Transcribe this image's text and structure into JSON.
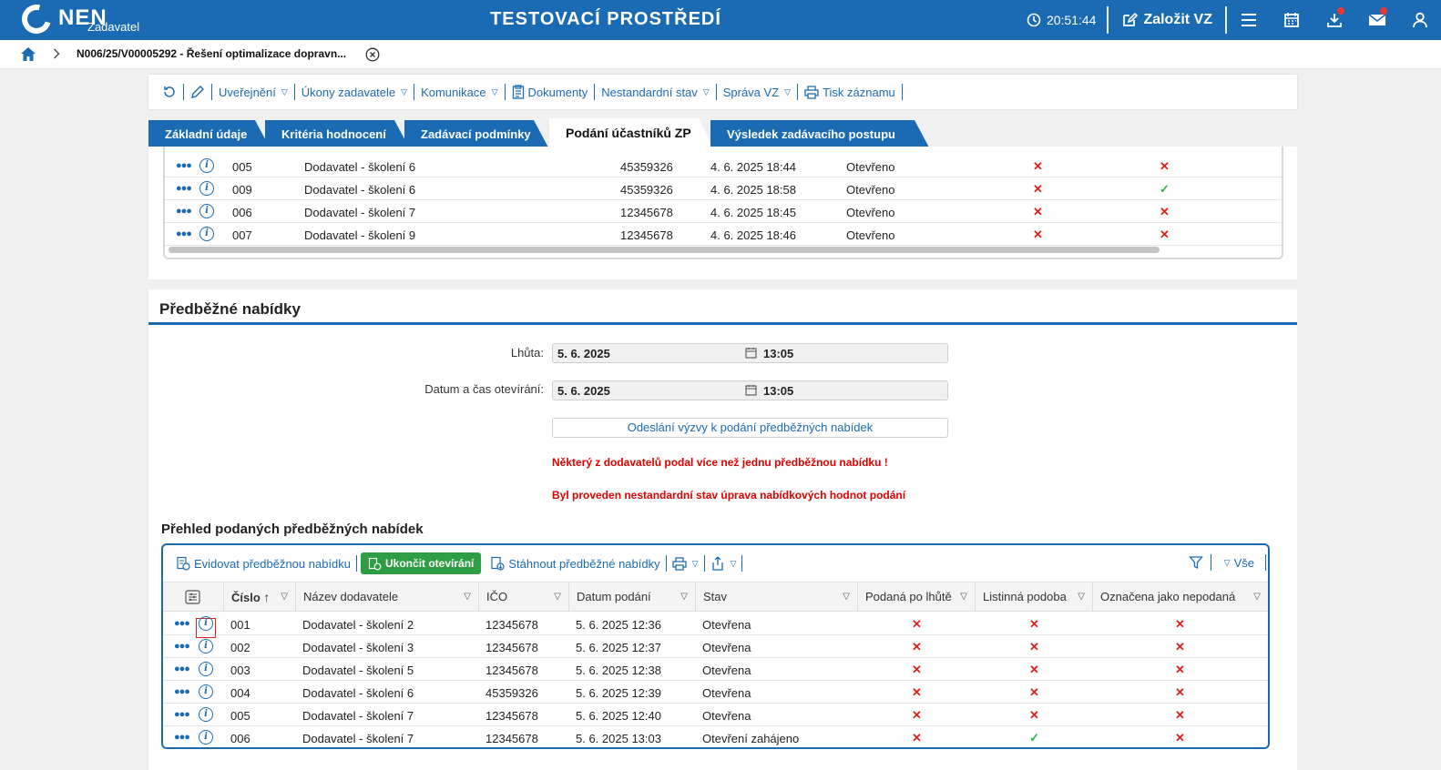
{
  "topbar": {
    "logo": "NEN",
    "logo_sub": "Zadavatel",
    "env_title": "TESTOVACÍ PROSTŘEDÍ",
    "time": "20:51:44",
    "create_label": "Založit VZ",
    "icons": [
      "clock-icon",
      "edit-icon",
      "menu-icon",
      "calendar-icon",
      "download-icon",
      "mail-icon",
      "user-icon"
    ],
    "brand_color": "#1a6bb3"
  },
  "breadcrumb": {
    "text": "N006/25/V00005292 - Řešení optimalizace dopravn..."
  },
  "toolbar": {
    "items": [
      {
        "label": "Uveřejnění",
        "dropdown": true
      },
      {
        "label": "Úkony zadavatele",
        "dropdown": true
      },
      {
        "label": "Komunikace",
        "dropdown": true
      },
      {
        "label": "Dokumenty",
        "dropdown": false
      },
      {
        "label": "Nestandardní stav",
        "dropdown": true
      },
      {
        "label": "Správa VZ",
        "dropdown": true
      },
      {
        "label": "Tisk záznamu",
        "dropdown": false
      }
    ]
  },
  "tabs": [
    {
      "label": "Základní údaje",
      "active": false
    },
    {
      "label": "Kritéria hodnocení",
      "active": false
    },
    {
      "label": "Zadávací podmínky",
      "active": false
    },
    {
      "label": "Podání účastníků ZP",
      "active": true
    },
    {
      "label": "Výsledek zadávacího postupu",
      "active": false
    }
  ],
  "upper_table": {
    "rows": [
      {
        "cislo": "005",
        "dodavatel": "Dodavatel - školení 6",
        "ico": "45359326",
        "datum": "4. 6. 2025 18:44",
        "stav": "Otevřeno",
        "c1": "x",
        "c2": "x"
      },
      {
        "cislo": "009",
        "dodavatel": "Dodavatel - školení 6",
        "ico": "45359326",
        "datum": "4. 6. 2025 18:58",
        "stav": "Otevřeno",
        "c1": "x",
        "c2": "ok"
      },
      {
        "cislo": "006",
        "dodavatel": "Dodavatel - školení 7",
        "ico": "12345678",
        "datum": "4. 6. 2025 18:45",
        "stav": "Otevřeno",
        "c1": "x",
        "c2": "x"
      },
      {
        "cislo": "007",
        "dodavatel": "Dodavatel - školení 9",
        "ico": "12345678",
        "datum": "4. 6. 2025 18:46",
        "stav": "Otevřeno",
        "c1": "x",
        "c2": "x"
      }
    ]
  },
  "predbezne": {
    "title": "Předběžné nabídky",
    "lhuta_label": "Lhůta:",
    "lhuta_date": "5. 6. 2025",
    "lhuta_time": "13:05",
    "otevirani_label": "Datum a čas otevírání:",
    "otevirani_date": "5. 6. 2025",
    "otevirani_time": "13:05",
    "send_button": "Odeslání výzvy k podání předběžných nabídek",
    "warning1": "Některý z dodavatelů podal více než jednu předběžnou nabídku !",
    "warning2": "Byl proveden nestandardní stav úprava nabídkových hodnot podání"
  },
  "grid": {
    "title": "Přehled podaných předběžných nabídek",
    "btn_evidovat": "Evidovat předběžnou nabídku",
    "btn_ukoncit": "Ukončit otevírání",
    "btn_stahnout": "Stáhnout předběžné nabídky",
    "filter_all": "Vše",
    "columns": {
      "cislo": "Číslo",
      "nazev": "Název dodavatele",
      "ico": "IČO",
      "datum": "Datum podání",
      "stav": "Stav",
      "po_lhute": "Podaná po lhůtě",
      "listinna": "Listinná podoba",
      "nepodana": "Označena jako nepodaná"
    },
    "rows": [
      {
        "cislo": "001",
        "nazev": "Dodavatel - školení 2",
        "ico": "12345678",
        "datum": "5. 6. 2025 12:36",
        "stav": "Otevřena",
        "po_lhute": "x",
        "listinna": "x",
        "nepodana": "x"
      },
      {
        "cislo": "002",
        "nazev": "Dodavatel - školení 3",
        "ico": "12345678",
        "datum": "5. 6. 2025 12:37",
        "stav": "Otevřena",
        "po_lhute": "x",
        "listinna": "x",
        "nepodana": "x"
      },
      {
        "cislo": "003",
        "nazev": "Dodavatel - školení 5",
        "ico": "12345678",
        "datum": "5. 6. 2025 12:38",
        "stav": "Otevřena",
        "po_lhute": "x",
        "listinna": "x",
        "nepodana": "x"
      },
      {
        "cislo": "004",
        "nazev": "Dodavatel - školení 6",
        "ico": "45359326",
        "datum": "5. 6. 2025 12:39",
        "stav": "Otevřena",
        "po_lhute": "x",
        "listinna": "x",
        "nepodana": "x"
      },
      {
        "cislo": "005",
        "nazev": "Dodavatel - školení 7",
        "ico": "12345678",
        "datum": "5. 6. 2025 12:40",
        "stav": "Otevřena",
        "po_lhute": "x",
        "listinna": "x",
        "nepodana": "x"
      },
      {
        "cislo": "006",
        "nazev": "Dodavatel - školení 7",
        "ico": "12345678",
        "datum": "5. 6. 2025 13:03",
        "stav": "Otevření zahájeno",
        "po_lhute": "x",
        "listinna": "ok",
        "nepodana": "x"
      }
    ]
  }
}
